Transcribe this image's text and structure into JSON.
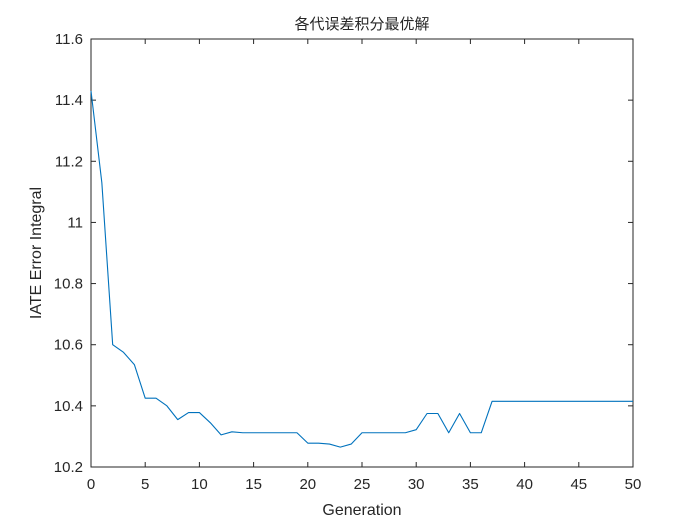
{
  "chart_data": {
    "type": "line",
    "title": "各代误差积分最优解",
    "xlabel": "Generation",
    "ylabel": "IATE Error Integral",
    "xlim": [
      0,
      50
    ],
    "ylim": [
      10.2,
      11.6
    ],
    "xticks": [
      "0",
      "5",
      "10",
      "15",
      "20",
      "25",
      "30",
      "35",
      "40",
      "45",
      "50"
    ],
    "yticks": [
      "10.2",
      "10.4",
      "10.6",
      "10.8",
      "11",
      "11.2",
      "11.4",
      "11.6"
    ],
    "grid": false,
    "series": [
      {
        "color": "#0072BD",
        "x": [
          0,
          1,
          2,
          3,
          4,
          5,
          6,
          7,
          8,
          9,
          10,
          11,
          12,
          13,
          14,
          15,
          16,
          17,
          18,
          19,
          20,
          21,
          22,
          23,
          24,
          25,
          26,
          27,
          28,
          29,
          30,
          31,
          32,
          33,
          34,
          35,
          36,
          37,
          38,
          39,
          40,
          41,
          42,
          43,
          44,
          45,
          46,
          47,
          48,
          49,
          50
        ],
        "y": [
          11.43,
          11.13,
          10.6,
          10.575,
          10.535,
          10.425,
          10.425,
          10.4,
          10.355,
          10.378,
          10.378,
          10.345,
          10.305,
          10.315,
          10.312,
          10.312,
          10.312,
          10.312,
          10.312,
          10.312,
          10.278,
          10.278,
          10.275,
          10.265,
          10.275,
          10.312,
          10.312,
          10.312,
          10.312,
          10.312,
          10.322,
          10.375,
          10.375,
          10.312,
          10.375,
          10.312,
          10.312,
          10.415,
          10.415,
          10.415,
          10.415,
          10.415,
          10.415,
          10.415,
          10.415,
          10.415,
          10.415,
          10.415,
          10.415,
          10.415,
          10.415
        ]
      }
    ]
  }
}
